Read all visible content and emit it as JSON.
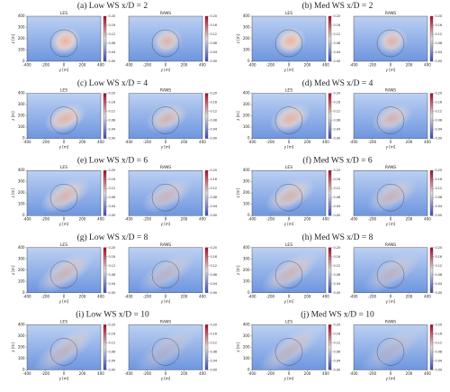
{
  "axes": {
    "xlabel": "y [m]",
    "ylabel": "z [m]",
    "xlim": [
      -400,
      400
    ],
    "xticks": [
      -400,
      -200,
      0,
      200,
      400
    ],
    "ylim": [
      0,
      400
    ],
    "yticks": [
      0,
      100,
      200,
      300,
      400
    ],
    "clim": [
      0,
      0.2
    ],
    "cticks": [
      {
        "value": 0,
        "label": "0.00"
      },
      {
        "value": 0.04,
        "label": "0.04"
      },
      {
        "value": 0.08,
        "label": "0.08"
      },
      {
        "value": 0.12,
        "label": "0.12"
      },
      {
        "value": 0.16,
        "label": "0.16"
      },
      {
        "value": 0.2,
        "label": "0.20"
      }
    ]
  },
  "chart_data": [
    {
      "type": "heatmap",
      "title": "(a) Low WS x/D = 2",
      "subplots": [
        "LES",
        "RANS"
      ]
    },
    {
      "type": "heatmap",
      "title": "(b) Med WS x/D = 2",
      "subplots": [
        "LES",
        "RANS"
      ]
    },
    {
      "type": "heatmap",
      "title": "(c) Low WS x/D = 4",
      "subplots": [
        "LES",
        "RANS"
      ]
    },
    {
      "type": "heatmap",
      "title": "(d) Med WS x/D = 4",
      "subplots": [
        "LES",
        "RANS"
      ]
    },
    {
      "type": "heatmap",
      "title": "(e) Low WS x/D = 6",
      "subplots": [
        "LES",
        "RANS"
      ]
    },
    {
      "type": "heatmap",
      "title": "(f) Med WS x/D = 6",
      "subplots": [
        "LES",
        "RANS"
      ]
    },
    {
      "type": "heatmap",
      "title": "(g) Low WS x/D = 8",
      "subplots": [
        "LES",
        "RANS"
      ]
    },
    {
      "type": "heatmap",
      "title": "(h) Med WS x/D = 8",
      "subplots": [
        "LES",
        "RANS"
      ]
    },
    {
      "type": "heatmap",
      "title": "(i) Low WS x/D = 10",
      "subplots": [
        "LES",
        "RANS"
      ]
    },
    {
      "type": "heatmap",
      "title": "(j) Med WS x/D = 10",
      "subplots": [
        "LES",
        "RANS"
      ]
    }
  ]
}
